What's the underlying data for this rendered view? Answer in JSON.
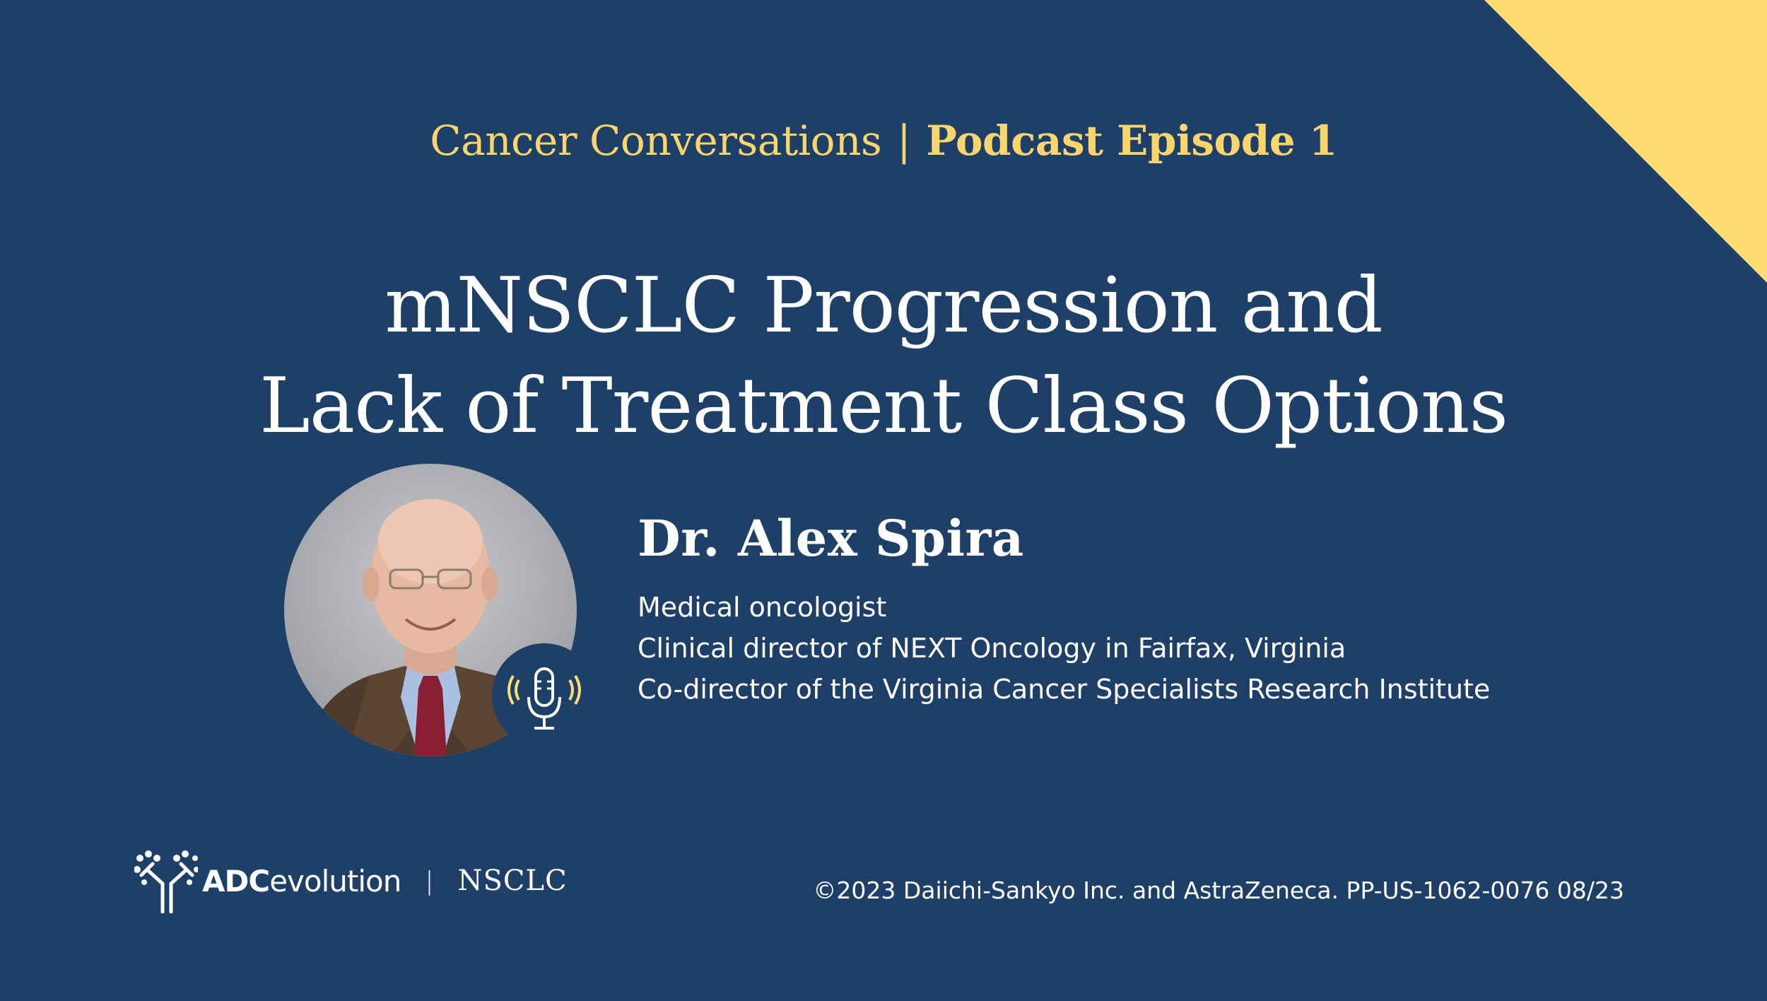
{
  "header": {
    "series": "Cancer Conversations",
    "separator": "|",
    "episode": "Podcast Episode 1"
  },
  "title": {
    "line1": "mNSCLC Progression and",
    "line2": "Lack of Treatment Class Options"
  },
  "speaker": {
    "name": "Dr. Alex Spira",
    "roles": [
      "Medical oncologist",
      "Clinical director of NEXT Oncology in Fairfax, Virginia",
      "Co-director of the Virginia Cancer Specialists Research Institute"
    ]
  },
  "footer": {
    "brand_bold": "ADC",
    "brand_rest": "evolution",
    "separator": "|",
    "tag": "NSCLC",
    "copyright": "©2023 Daiichi-Sankyo Inc. and AstraZeneca. PP-US-1062-0076 08/23"
  },
  "icons": {
    "photo": "speaker-portrait",
    "badge": "microphone-icon",
    "logo": "adc-molecule-logo"
  },
  "colors": {
    "background": "#1e3f67",
    "accent_yellow": "#fddc72",
    "text": "#ffffff"
  }
}
